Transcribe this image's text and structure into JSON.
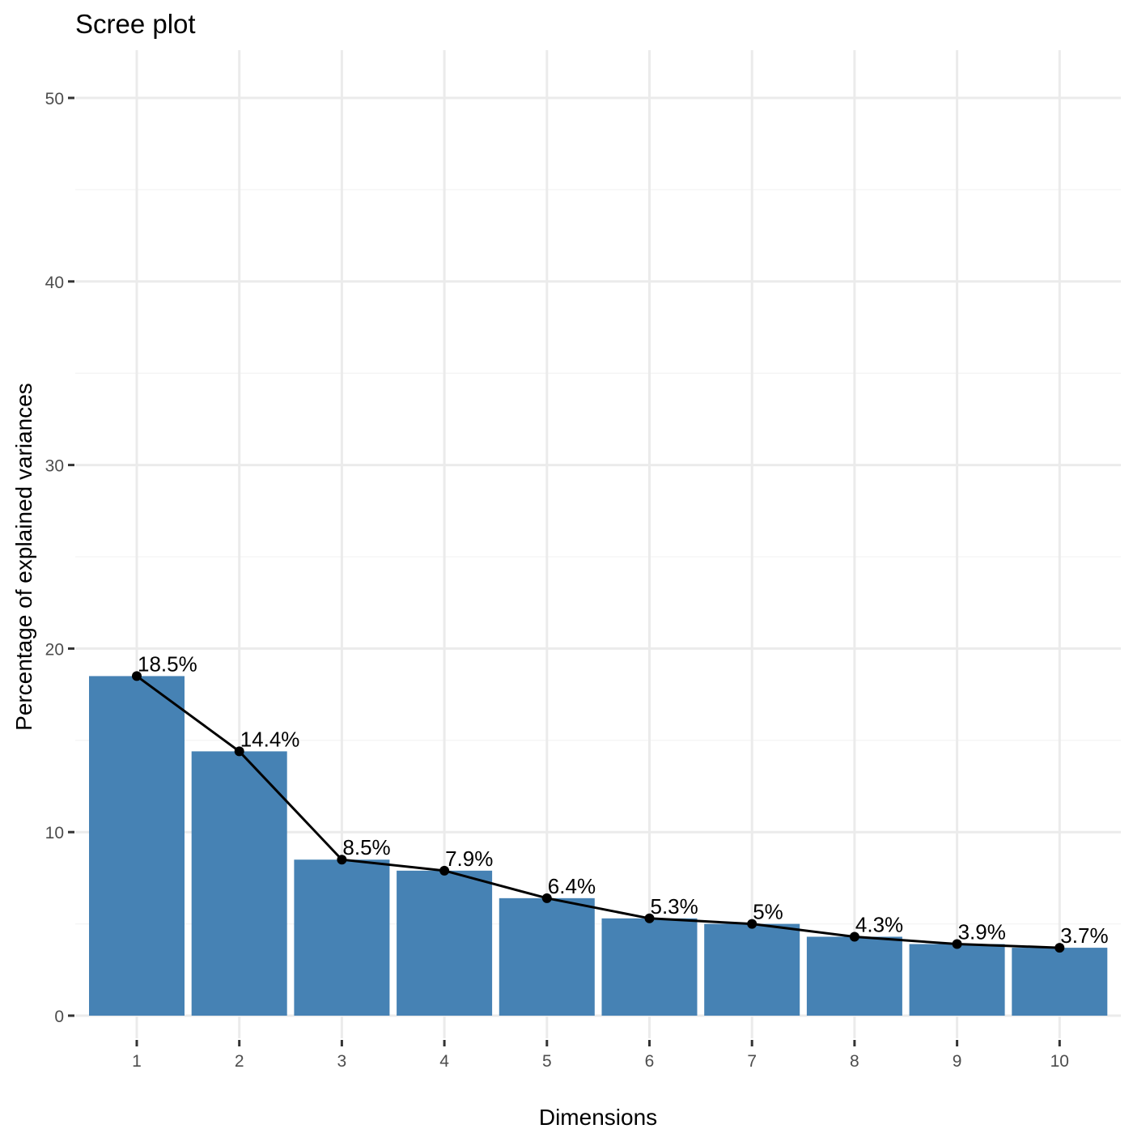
{
  "chart_data": {
    "type": "bar",
    "title": "Scree plot",
    "xlabel": "Dimensions",
    "ylabel": "Percentage of explained variances",
    "categories": [
      "1",
      "2",
      "3",
      "4",
      "5",
      "6",
      "7",
      "8",
      "9",
      "10"
    ],
    "values": [
      18.5,
      14.4,
      8.5,
      7.9,
      6.4,
      5.3,
      5.0,
      4.3,
      3.9,
      3.7
    ],
    "data_labels": [
      "18.5%",
      "14.4%",
      "8.5%",
      "7.9%",
      "6.4%",
      "5.3%",
      "5%",
      "4.3%",
      "3.9%",
      "3.7%"
    ],
    "overlay": "line-with-points",
    "ylim": [
      0,
      52
    ],
    "yticks": [
      0,
      10,
      20,
      30,
      40,
      50
    ],
    "grid": true,
    "legend": "none",
    "bar_color": "#4682b4",
    "line_color": "#000000"
  }
}
